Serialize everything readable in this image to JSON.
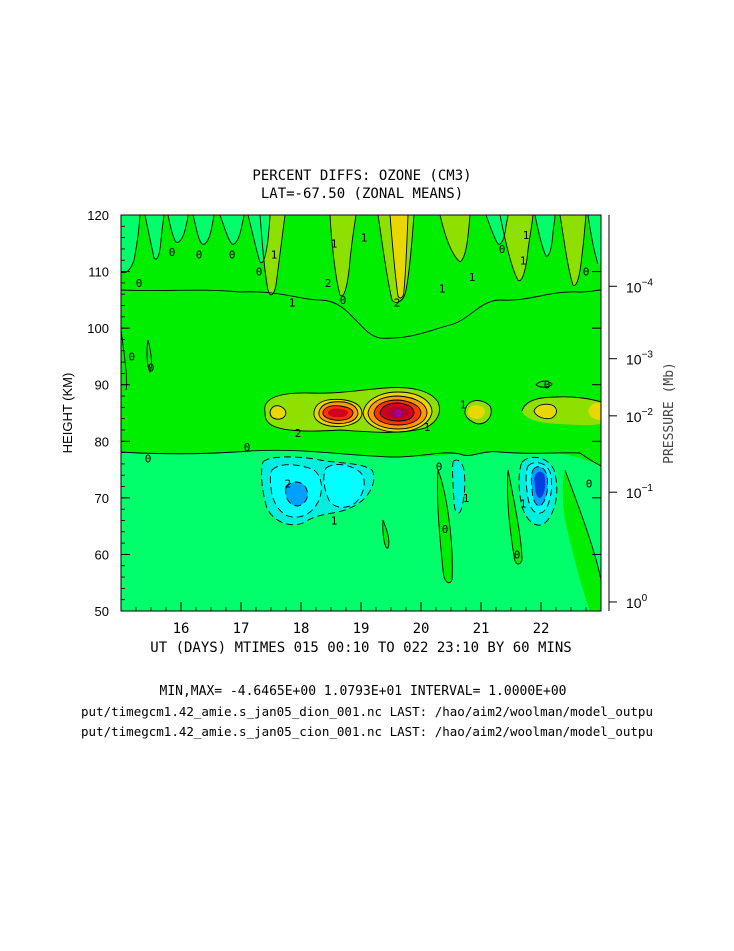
{
  "chart_data": {
    "type": "contour",
    "title": "PERCENT DIFFS: OZONE (CM3)",
    "subtitle": "LAT=-67.50 (ZONAL MEANS)",
    "xlabel": "UT (DAYS) MTIMES 015 00:10 TO 022 23:10 BY   60 MINS",
    "ylabel": "HEIGHT (KM)",
    "y2label": "PRESSURE (Mb)",
    "xlim": [
      15.0,
      23.0
    ],
    "ylim": [
      50,
      120
    ],
    "x_ticks": [
      {
        "value": 16,
        "label": "16"
      },
      {
        "value": 17,
        "label": "17"
      },
      {
        "value": 18,
        "label": "18"
      },
      {
        "value": 19,
        "label": "19"
      },
      {
        "value": 20,
        "label": "20"
      },
      {
        "value": 21,
        "label": "21"
      },
      {
        "value": 22,
        "label": "22"
      }
    ],
    "y_ticks": [
      {
        "value": 50,
        "label": "50"
      },
      {
        "value": 60,
        "label": "60"
      },
      {
        "value": 70,
        "label": "70"
      },
      {
        "value": 80,
        "label": "80"
      },
      {
        "value": 90,
        "label": "90"
      },
      {
        "value": 100,
        "label": "100"
      },
      {
        "value": 110,
        "label": "110"
      },
      {
        "value": 120,
        "label": "120"
      }
    ],
    "pressure_ticks": [
      {
        "height": 107.4,
        "base": "10",
        "exp": "−4"
      },
      {
        "height": 94.6,
        "base": "10",
        "exp": "−3"
      },
      {
        "height": 84.5,
        "base": "10",
        "exp": "−2"
      },
      {
        "height": 71.0,
        "base": "10",
        "exp": "−1"
      },
      {
        "height": 51.6,
        "base": "10",
        "exp": "0"
      }
    ],
    "min": -4.6465,
    "max": 10.793,
    "interval": 1.0,
    "stats_text": "MIN,MAX= -4.6465E+00  1.0793E+01 INTERVAL=  1.0000E+00",
    "file_lines": [
      "put/timegcm1.42_amie.s_jan05_dion_001.nc LAST: /hao/aim2/woolman/model_outpu",
      "put/timegcm1.42_amie.s_jan05_cion_001.nc LAST: /hao/aim2/woolman/model_outpu"
    ],
    "features": [
      {
        "name": "positive-band-peak-1",
        "day": 17.6,
        "height": 85,
        "value": 2
      },
      {
        "name": "positive-band-peak-2",
        "day": 18.55,
        "height": 85,
        "value": 6
      },
      {
        "name": "positive-band-max",
        "day": 19.6,
        "height": 85,
        "value": 10.8
      },
      {
        "name": "positive-band-peak-3",
        "day": 20.95,
        "height": 85,
        "value": 1
      },
      {
        "name": "positive-band-peak-4",
        "day": 22.1,
        "height": 85,
        "value": 2
      },
      {
        "name": "negative-region-1",
        "day": 18.0,
        "height": 70.5,
        "value": -3
      },
      {
        "name": "negative-region-2",
        "day": 18.7,
        "height": 71.5,
        "value": -2
      },
      {
        "name": "negative-region-min",
        "day": 21.95,
        "height": 72.5,
        "value": -4.6
      },
      {
        "name": "upper-positive-spike",
        "day": 19.6,
        "height": 112,
        "value": 2
      }
    ],
    "contour_labels": [
      {
        "text": "0",
        "day": 15.18,
        "height": 95
      },
      {
        "text": "0",
        "day": 15.5,
        "height": 93
      },
      {
        "text": "0",
        "day": 15.3,
        "height": 108
      },
      {
        "text": "0",
        "day": 15.85,
        "height": 113.5
      },
      {
        "text": "0",
        "day": 16.3,
        "height": 113
      },
      {
        "text": "0",
        "day": 16.85,
        "height": 113
      },
      {
        "text": "0",
        "day": 17.3,
        "height": 110
      },
      {
        "text": "1",
        "day": 17.55,
        "height": 113
      },
      {
        "text": "1",
        "day": 17.85,
        "height": 104.5
      },
      {
        "text": "1",
        "day": 18.55,
        "height": 115
      },
      {
        "text": "2",
        "day": 18.45,
        "height": 108
      },
      {
        "text": "0",
        "day": 18.7,
        "height": 105
      },
      {
        "text": "1",
        "day": 19.05,
        "height": 116
      },
      {
        "text": "2",
        "day": 19.6,
        "height": 104.5
      },
      {
        "text": "1",
        "day": 20.35,
        "height": 107
      },
      {
        "text": "1",
        "day": 20.85,
        "height": 109
      },
      {
        "text": "0",
        "day": 21.35,
        "height": 114
      },
      {
        "text": "1",
        "day": 21.75,
        "height": 116.5
      },
      {
        "text": "1",
        "day": 21.7,
        "height": 112
      },
      {
        "text": "0",
        "day": 22.75,
        "height": 110
      },
      {
        "text": "2",
        "day": 17.95,
        "height": 81.5
      },
      {
        "text": "1",
        "day": 20.1,
        "height": 82.5
      },
      {
        "text": "1",
        "day": 20.7,
        "height": 86.5
      },
      {
        "text": "0",
        "day": 22.1,
        "height": 90
      },
      {
        "text": "0",
        "day": 17.1,
        "height": 79
      },
      {
        "text": "0",
        "day": 15.45,
        "height": 77
      },
      {
        "text": "2",
        "day": 17.78,
        "height": 72.5
      },
      {
        "text": "1",
        "day": 18.55,
        "height": 66
      },
      {
        "text": "0",
        "day": 20.3,
        "height": 75.5
      },
      {
        "text": "1",
        "day": 20.75,
        "height": 70
      },
      {
        "text": "0",
        "day": 20.4,
        "height": 64.5
      },
      {
        "text": "1",
        "day": 21.7,
        "height": 69
      },
      {
        "text": "0",
        "day": 21.6,
        "height": 60
      },
      {
        "text": "0",
        "day": 22.8,
        "height": 72.5
      }
    ]
  },
  "colors": {
    "background": "#ffffff",
    "zero_level": "#00ff6a",
    "level_1": "#00ee00",
    "level_2": "#8ee000",
    "level_3": "#e8d800",
    "level_4": "#ff9900",
    "level_5": "#ff3300",
    "level_6": "#d00020",
    "level_max": "#a000a0",
    "level_neg_1": "#00eedd",
    "level_neg_2": "#00ffff",
    "level_neg_3": "#00a0ff",
    "level_neg_4": "#0040e0",
    "text": "#000000"
  }
}
